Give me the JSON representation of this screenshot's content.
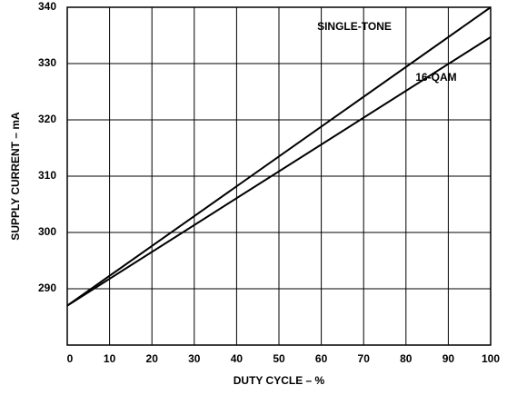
{
  "chart_data": {
    "type": "line",
    "x_label": "DUTY CYCLE – %",
    "y_label": "SUPPLY CURRENT – mA",
    "x": [
      0,
      100
    ],
    "series": [
      {
        "name": "SINGLE-TONE",
        "color": "#000000",
        "values": [
          287,
          340
        ]
      },
      {
        "name": "16-QAM",
        "color": "#000000",
        "values": [
          287,
          334.7
        ]
      }
    ],
    "xlim": [
      0,
      100
    ],
    "xticks": [
      0,
      10,
      20,
      30,
      40,
      50,
      60,
      70,
      80,
      90,
      100
    ],
    "ylim": [
      280,
      340
    ],
    "yticks": [
      290,
      300,
      310,
      320,
      330,
      340
    ],
    "grid": true
  }
}
